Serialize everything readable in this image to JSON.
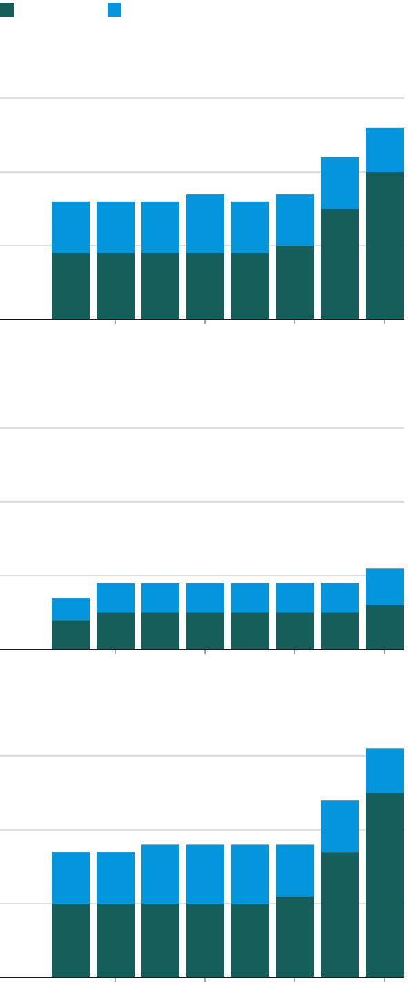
{
  "legend": {
    "items": [
      {
        "label": "",
        "color": "#155e5a"
      },
      {
        "label": "",
        "color": "#0396dc"
      }
    ]
  },
  "chart_data": [
    {
      "type": "bar",
      "stacked": true,
      "categories": [
        "",
        "",
        "",
        "",
        "",
        "",
        "",
        ""
      ],
      "series": [
        {
          "values": [
            9,
            9,
            9,
            9,
            9,
            10,
            15,
            20
          ]
        },
        {
          "values": [
            7,
            7,
            7,
            8,
            7,
            7,
            7,
            6
          ]
        }
      ],
      "ylim": [
        0,
        30
      ],
      "grid": true,
      "legend_placement": "top-left"
    },
    {
      "type": "bar",
      "stacked": true,
      "categories": [
        "",
        "",
        "",
        "",
        "",
        "",
        "",
        ""
      ],
      "series": [
        {
          "values": [
            4,
            5,
            5,
            5,
            5,
            5,
            5,
            6
          ]
        },
        {
          "values": [
            3,
            4,
            4,
            4,
            4,
            4,
            4,
            5
          ]
        }
      ],
      "ylim": [
        0,
        30
      ],
      "grid": true
    },
    {
      "type": "bar",
      "stacked": true,
      "categories": [
        "",
        "",
        "",
        "",
        "",
        "",
        "",
        ""
      ],
      "series": [
        {
          "values": [
            10,
            10,
            10,
            10,
            10,
            11,
            17,
            25
          ]
        },
        {
          "values": [
            7,
            7,
            8,
            8,
            8,
            7,
            7,
            6
          ]
        }
      ],
      "ylim": [
        0,
        30
      ],
      "grid": true
    }
  ]
}
